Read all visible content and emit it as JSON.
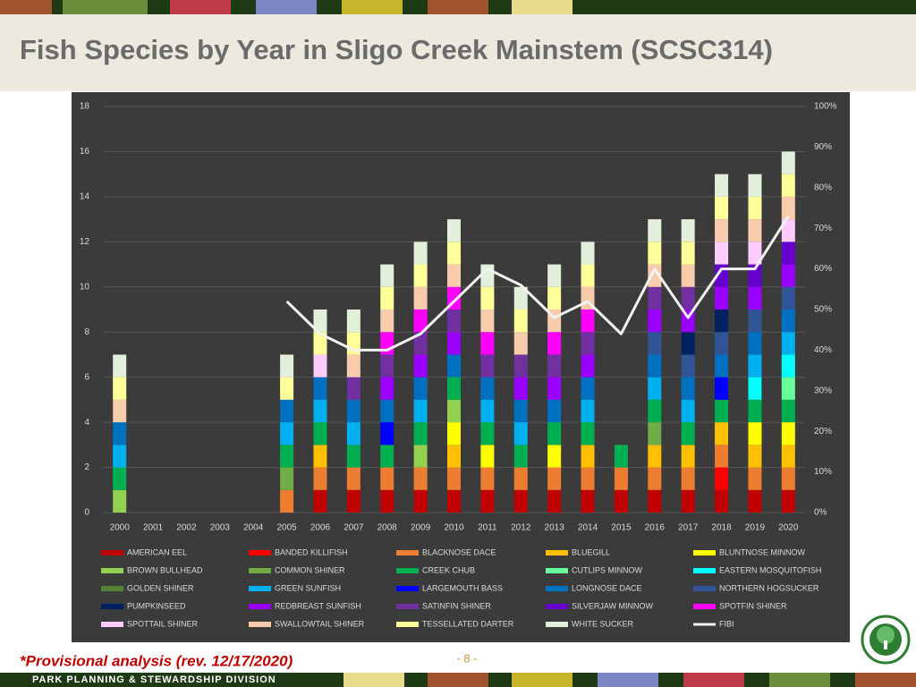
{
  "chart_data": {
    "type": "bar",
    "stacked": true,
    "title": "Fish Species by Year in Sligo Creek Mainstem (SCSC314)",
    "categories": [
      "2000",
      "2001",
      "2002",
      "2003",
      "2004",
      "2005",
      "2006",
      "2007",
      "2008",
      "2009",
      "2010",
      "2011",
      "2012",
      "2013",
      "2014",
      "2015",
      "2016",
      "2017",
      "2018",
      "2019",
      "2020"
    ],
    "ylim": [
      0,
      18
    ],
    "yticks": [
      0,
      2,
      4,
      6,
      8,
      10,
      12,
      14,
      16,
      18
    ],
    "y2lim": [
      0,
      100
    ],
    "y2ticks": [
      {
        "value": 0,
        "label": "0%"
      },
      {
        "value": 10,
        "label": "10%"
      },
      {
        "value": 20,
        "label": "20%"
      },
      {
        "value": 30,
        "label": "30%"
      },
      {
        "value": 40,
        "label": "40%"
      },
      {
        "value": 50,
        "label": "50%"
      },
      {
        "value": 60,
        "label": "60%"
      },
      {
        "value": 70,
        "label": "70%"
      },
      {
        "value": 80,
        "label": "80%"
      },
      {
        "value": 90,
        "label": "90%"
      },
      {
        "value": 100,
        "label": "100%"
      }
    ],
    "grid": true,
    "legend": "bottom",
    "series": [
      {
        "name": "AMERICAN EEL",
        "color": "#c00000",
        "values": [
          0,
          0,
          0,
          0,
          0,
          0,
          1,
          1,
          1,
          1,
          1,
          1,
          1,
          1,
          1,
          1,
          1,
          1,
          1,
          1,
          1
        ]
      },
      {
        "name": "BANDED KILLIFISH",
        "color": "#ff0000",
        "values": [
          0,
          0,
          0,
          0,
          0,
          0,
          0,
          0,
          0,
          0,
          0,
          0,
          0,
          0,
          0,
          0,
          0,
          0,
          1,
          0,
          0
        ]
      },
      {
        "name": "BLACKNOSE DACE",
        "color": "#ed7d31",
        "values": [
          0,
          0,
          0,
          0,
          0,
          1,
          1,
          1,
          1,
          1,
          1,
          1,
          1,
          1,
          1,
          1,
          1,
          1,
          1,
          1,
          1
        ]
      },
      {
        "name": "BLUEGILL",
        "color": "#ffc000",
        "values": [
          0,
          0,
          0,
          0,
          0,
          0,
          1,
          0,
          0,
          0,
          1,
          0,
          0,
          0,
          1,
          0,
          1,
          1,
          1,
          1,
          1
        ]
      },
      {
        "name": "BLUNTNOSE MINNOW",
        "color": "#ffff00",
        "values": [
          0,
          0,
          0,
          0,
          0,
          0,
          0,
          0,
          0,
          0,
          1,
          1,
          0,
          1,
          0,
          0,
          0,
          0,
          0,
          1,
          1
        ]
      },
      {
        "name": "BROWN BULLHEAD",
        "color": "#92d050",
        "values": [
          1,
          0,
          0,
          0,
          0,
          0,
          0,
          0,
          0,
          1,
          1,
          0,
          0,
          0,
          0,
          0,
          0,
          0,
          0,
          0,
          0
        ]
      },
      {
        "name": "COMMON SHINER",
        "color": "#70ad47",
        "values": [
          0,
          0,
          0,
          0,
          0,
          1,
          0,
          0,
          0,
          0,
          0,
          0,
          0,
          0,
          0,
          0,
          1,
          0,
          0,
          0,
          0
        ]
      },
      {
        "name": "CREEK CHUB",
        "color": "#00b050",
        "values": [
          1,
          0,
          0,
          0,
          0,
          1,
          1,
          1,
          1,
          1,
          1,
          1,
          1,
          1,
          1,
          1,
          1,
          1,
          1,
          1,
          1
        ]
      },
      {
        "name": "CUTLIPS MINNOW",
        "color": "#66ff99",
        "values": [
          0,
          0,
          0,
          0,
          0,
          0,
          0,
          0,
          0,
          0,
          0,
          0,
          0,
          0,
          0,
          0,
          0,
          0,
          0,
          0,
          1
        ]
      },
      {
        "name": "EASTERN MOSQUITOFISH",
        "color": "#00ffff",
        "values": [
          0,
          0,
          0,
          0,
          0,
          0,
          0,
          0,
          0,
          0,
          0,
          0,
          0,
          0,
          0,
          0,
          0,
          0,
          0,
          1,
          1
        ]
      },
      {
        "name": "GOLDEN SHINER",
        "color": "#548235",
        "values": [
          0,
          0,
          0,
          0,
          0,
          0,
          0,
          0,
          0,
          0,
          0,
          0,
          0,
          0,
          0,
          0,
          0,
          0,
          0,
          0,
          0
        ]
      },
      {
        "name": "GREEN SUNFISH",
        "color": "#00b0f0",
        "values": [
          1,
          0,
          0,
          0,
          0,
          1,
          1,
          1,
          0,
          1,
          0,
          1,
          1,
          0,
          1,
          0,
          1,
          1,
          0,
          1,
          1
        ]
      },
      {
        "name": "LARGEMOUTH BASS",
        "color": "#0000ff",
        "values": [
          0,
          0,
          0,
          0,
          0,
          0,
          0,
          0,
          1,
          0,
          0,
          0,
          0,
          0,
          0,
          0,
          0,
          0,
          1,
          0,
          0
        ]
      },
      {
        "name": "LONGNOSE DACE",
        "color": "#0070c0",
        "values": [
          1,
          0,
          0,
          0,
          0,
          1,
          1,
          1,
          1,
          1,
          1,
          1,
          1,
          1,
          1,
          0,
          1,
          1,
          1,
          1,
          1
        ]
      },
      {
        "name": "NORTHERN HOGSUCKER",
        "color": "#2f5597",
        "values": [
          0,
          0,
          0,
          0,
          0,
          0,
          0,
          0,
          0,
          0,
          0,
          0,
          0,
          0,
          0,
          0,
          1,
          1,
          1,
          1,
          1
        ]
      },
      {
        "name": "PUMPKINSEED",
        "color": "#002060",
        "values": [
          0,
          0,
          0,
          0,
          0,
          0,
          0,
          0,
          0,
          0,
          0,
          0,
          0,
          0,
          0,
          0,
          0,
          1,
          1,
          0,
          0
        ]
      },
      {
        "name": "REDBREAST SUNFISH",
        "color": "#9900ff",
        "values": [
          0,
          0,
          0,
          0,
          0,
          0,
          0,
          0,
          1,
          1,
          1,
          0,
          1,
          1,
          1,
          0,
          1,
          1,
          1,
          1,
          1
        ]
      },
      {
        "name": "SATINFIN SHINER",
        "color": "#7030a0",
        "values": [
          0,
          0,
          0,
          0,
          0,
          0,
          0,
          1,
          1,
          1,
          1,
          1,
          1,
          1,
          1,
          0,
          1,
          1,
          0,
          0,
          0
        ]
      },
      {
        "name": "SILVERJAW MINNOW",
        "color": "#6600cc",
        "values": [
          0,
          0,
          0,
          0,
          0,
          0,
          0,
          0,
          0,
          0,
          0,
          0,
          0,
          0,
          0,
          0,
          0,
          0,
          1,
          1,
          1
        ]
      },
      {
        "name": "SPOTFIN SHINER",
        "color": "#ff00ff",
        "values": [
          0,
          0,
          0,
          0,
          0,
          0,
          0,
          0,
          1,
          1,
          1,
          1,
          0,
          1,
          1,
          0,
          0,
          0,
          0,
          0,
          0
        ]
      },
      {
        "name": "SPOTTAIL SHINER",
        "color": "#ffccff",
        "values": [
          0,
          0,
          0,
          0,
          0,
          0,
          1,
          0,
          0,
          0,
          0,
          0,
          0,
          0,
          0,
          0,
          0,
          0,
          1,
          1,
          1
        ]
      },
      {
        "name": "SWALLOWTAIL SHINER",
        "color": "#f8cbad",
        "values": [
          1,
          0,
          0,
          0,
          0,
          0,
          0,
          1,
          1,
          1,
          1,
          1,
          1,
          1,
          1,
          0,
          1,
          1,
          1,
          1,
          1
        ]
      },
      {
        "name": "TESSELLATED DARTER",
        "color": "#ffff99",
        "values": [
          1,
          0,
          0,
          0,
          0,
          1,
          1,
          1,
          1,
          1,
          1,
          1,
          1,
          1,
          1,
          0,
          1,
          1,
          1,
          1,
          1
        ]
      },
      {
        "name": "WHITE SUCKER",
        "color": "#e2efda",
        "values": [
          1,
          0,
          0,
          0,
          0,
          1,
          1,
          1,
          1,
          1,
          1,
          1,
          1,
          1,
          1,
          0,
          1,
          1,
          1,
          1,
          1
        ]
      },
      {
        "name": "FIBI",
        "color": "#f2f2f2",
        "type": "line",
        "axis": "y2",
        "values": [
          null,
          null,
          null,
          null,
          null,
          52,
          44,
          40,
          40,
          44,
          52,
          60,
          56,
          48,
          52,
          44,
          60,
          48,
          60,
          60,
          73
        ]
      }
    ]
  },
  "footer": {
    "note": "*Provisional analysis (rev. 12/17/2020)",
    "page": "- 8 -",
    "division": "PARK PLANNING & STEWARDSHIP DIVISION"
  }
}
